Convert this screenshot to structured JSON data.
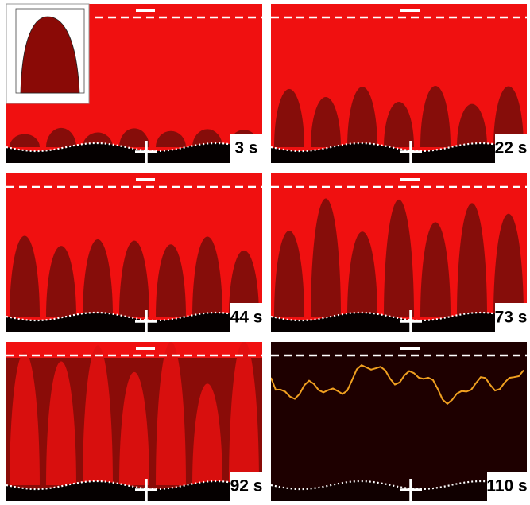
{
  "panels": [
    {
      "label": "3 s"
    },
    {
      "label": "22 s"
    },
    {
      "label": "44 s"
    },
    {
      "label": "73 s"
    },
    {
      "label": "92 s"
    },
    {
      "label": "110 s"
    }
  ]
}
